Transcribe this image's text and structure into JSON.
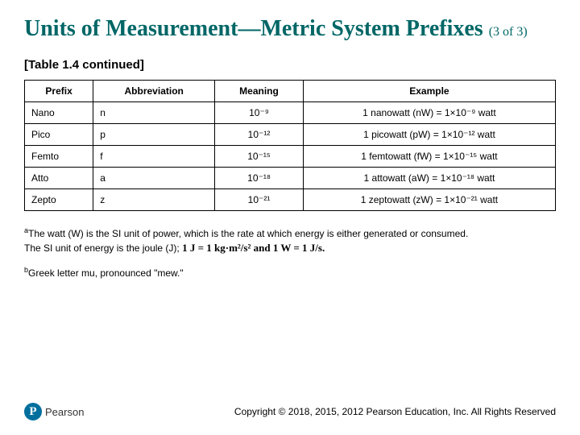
{
  "title_main": "Units of Measurement—Metric System Prefixes",
  "title_sub": "(3 of 3)",
  "subtitle": "[Table 1.4 continued]",
  "table": {
    "headers": [
      "Prefix",
      "Abbreviation",
      "Meaning",
      "Example"
    ],
    "rows": [
      {
        "prefix": "Nano",
        "abbr": "n",
        "meaning": "10⁻⁹",
        "example": "1 nanowatt (nW) = 1×10⁻⁹ watt"
      },
      {
        "prefix": "Pico",
        "abbr": "p",
        "meaning": "10⁻¹²",
        "example": "1 picowatt (pW) = 1×10⁻¹² watt"
      },
      {
        "prefix": "Femto",
        "abbr": "f",
        "meaning": "10⁻¹⁵",
        "example": "1 femtowatt (fW) = 1×10⁻¹⁵ watt"
      },
      {
        "prefix": "Atto",
        "abbr": "a",
        "meaning": "10⁻¹⁸",
        "example": "1 attowatt (aW) = 1×10⁻¹⁸ watt"
      },
      {
        "prefix": "Zepto",
        "abbr": "z",
        "meaning": "10⁻²¹",
        "example": "1 zeptowatt (zW) = 1×10⁻²¹ watt"
      }
    ]
  },
  "footnote_a_sup": "a",
  "footnote_a_line1": "The watt (W) is the SI unit of power, which is the rate at which energy is either generated or consumed.",
  "footnote_a_line2_prefix": "The SI unit of energy is the joule (J); ",
  "footnote_a_eq": "1 J = 1 kg·m²/s² and 1 W = 1 J/s.",
  "footnote_b_sup": "b",
  "footnote_b": "Greek letter mu, pronounced \"mew.\"",
  "logo_letter": "P",
  "logo_text": "Pearson",
  "copyright": "Copyright © 2018, 2015, 2012 Pearson Education, Inc. All Rights Reserved"
}
